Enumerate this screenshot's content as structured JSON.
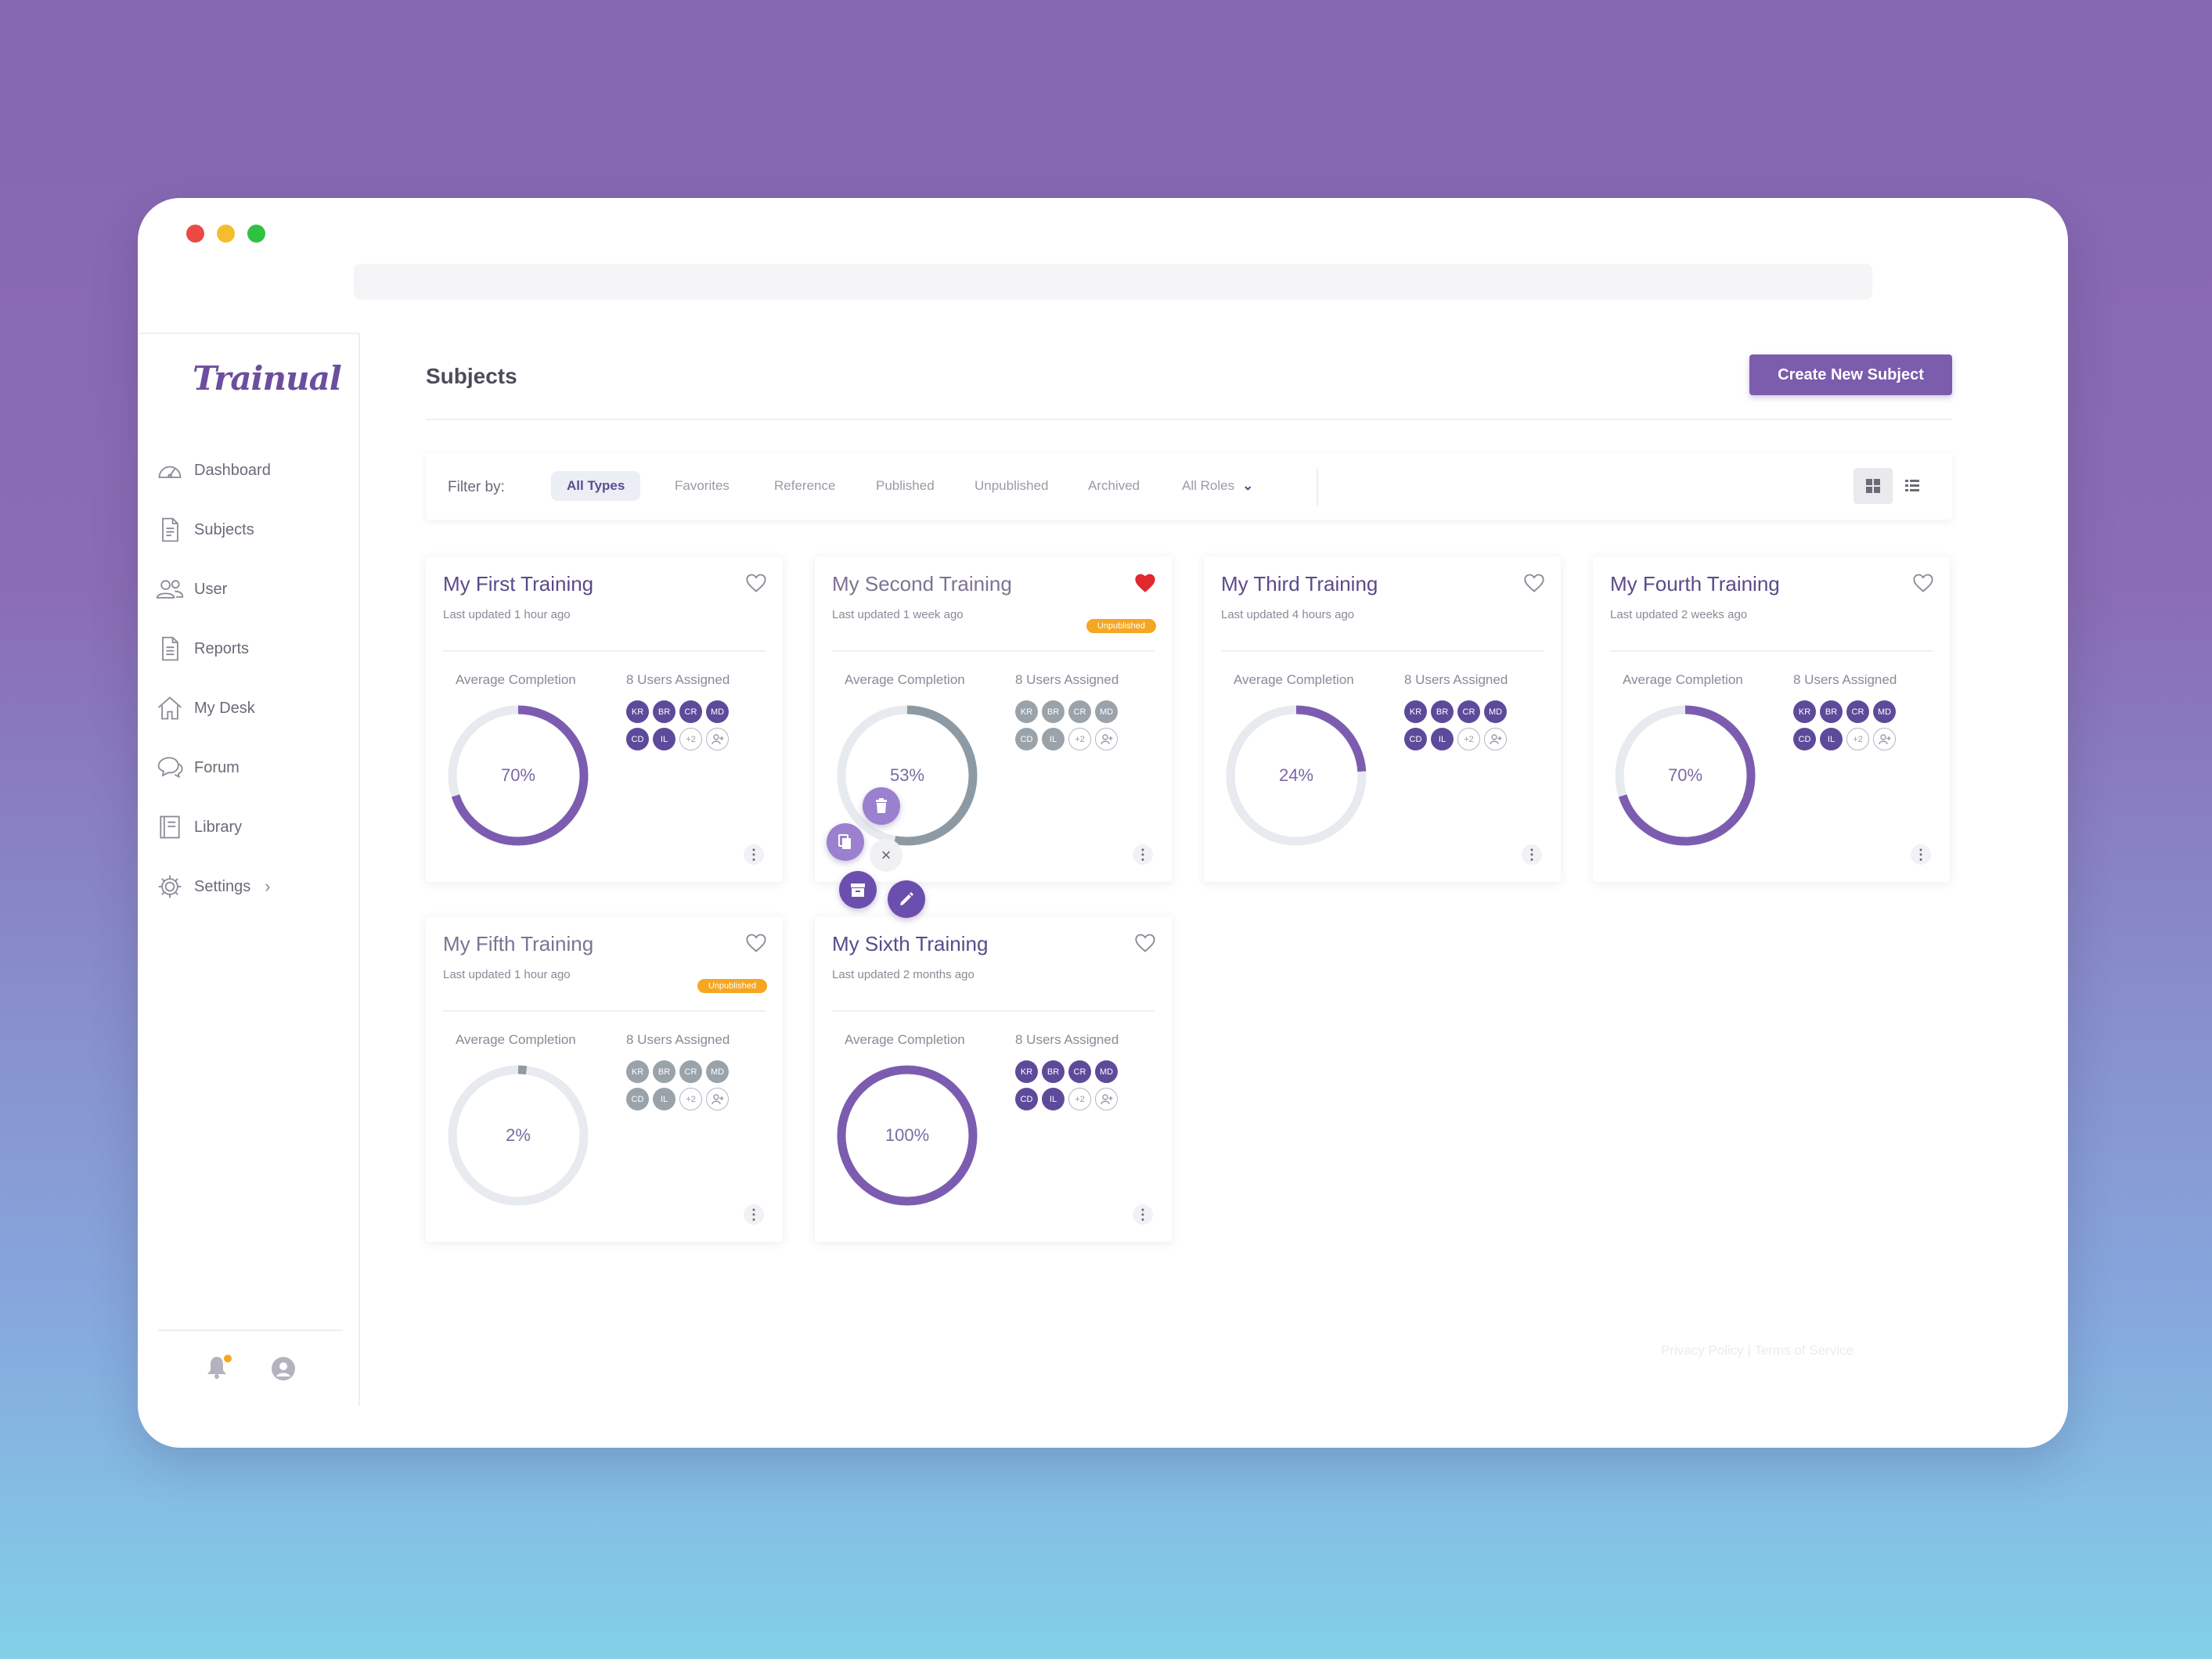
{
  "app": {
    "logo": "Trainual"
  },
  "sidebar": {
    "items": [
      {
        "label": "Dashboard",
        "icon": "dashboard-icon"
      },
      {
        "label": "Subjects",
        "icon": "document-icon"
      },
      {
        "label": "User",
        "icon": "users-icon"
      },
      {
        "label": "Reports",
        "icon": "report-icon"
      },
      {
        "label": "My Desk",
        "icon": "home-icon"
      },
      {
        "label": "Forum",
        "icon": "chat-icon"
      },
      {
        "label": "Library",
        "icon": "book-icon"
      },
      {
        "label": "Settings",
        "icon": "gear-icon"
      }
    ]
  },
  "header": {
    "title": "Subjects",
    "create_button": "Create New Subject"
  },
  "filter": {
    "label": "Filter by:",
    "options": [
      "All Types",
      "Favorites",
      "Reference",
      "Published",
      "Unpublished",
      "Archived"
    ],
    "active": "All Types",
    "roles": "All Roles"
  },
  "labels": {
    "avg": "Average Completion",
    "users": "8 Users Assigned",
    "unpublished": "Unpublished"
  },
  "colors": {
    "accent": "#7b5cad",
    "ring_active": "#7c5cb0",
    "ring_inactive": "#8e9aa3",
    "track": "#e7eaee",
    "badge": "#f5a623",
    "heart_active": "#e0282e"
  },
  "cards": [
    {
      "title": "My First Training",
      "updated": "Last updated 1 hour ago",
      "completion": 70,
      "completion_label": "70%",
      "favorite": false,
      "unpublished": false,
      "faded": false
    },
    {
      "title": "My Second Training",
      "updated": "Last updated 1 week ago",
      "completion": 53,
      "completion_label": "53%",
      "favorite": true,
      "unpublished": true,
      "faded": true
    },
    {
      "title": "My Third Training",
      "updated": "Last updated 4 hours ago",
      "completion": 24,
      "completion_label": "24%",
      "favorite": false,
      "unpublished": false,
      "faded": false
    },
    {
      "title": "My Fourth Training",
      "updated": "Last updated 2 weeks ago",
      "completion": 70,
      "completion_label": "70%",
      "favorite": false,
      "unpublished": false,
      "faded": false
    },
    {
      "title": "My Fifth Training",
      "updated": "Last updated 1 hour ago",
      "completion": 2,
      "completion_label": "2%",
      "favorite": false,
      "unpublished": true,
      "faded": true
    },
    {
      "title": "My Sixth Training",
      "updated": "Last updated 2  months ago",
      "completion": 100,
      "completion_label": "100%",
      "favorite": false,
      "unpublished": false,
      "faded": false
    }
  ],
  "avatars": [
    "KR",
    "BR",
    "CR",
    "MD",
    "CD",
    "IL"
  ],
  "avatar_more": "+2",
  "avatar_add": "+",
  "footer": "Privacy Policy | Terms of Service"
}
